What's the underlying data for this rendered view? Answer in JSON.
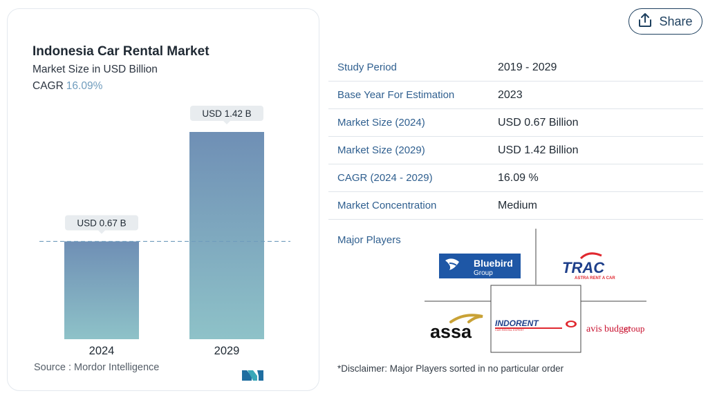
{
  "chart_data": {
    "type": "bar",
    "title": "Indonesia Car Rental Market",
    "subtitle": "Market Size in USD Billion",
    "cagr_label": "CAGR",
    "cagr_value": "16.09%",
    "categories": [
      "2024",
      "2029"
    ],
    "values": [
      0.67,
      1.42
    ],
    "data_labels": [
      "USD 0.67 B",
      "USD 1.42 B"
    ],
    "ylim": [
      0,
      1.42
    ],
    "reference_line_value": 0.67,
    "grid": false,
    "legend": "none",
    "colors": {
      "bar_top": "#6f8fb5",
      "bar_bottom": "#8ec2c8",
      "label_bg": "#e8ecef",
      "ref_line": "#6f9cbd"
    }
  },
  "source": "Source :  Mordor Intelligence",
  "share": {
    "label": "Share",
    "icon": "share-icon"
  },
  "info_rows": [
    {
      "label": "Study Period",
      "value": "2019 - 2029"
    },
    {
      "label": "Base Year For Estimation",
      "value": "2023"
    },
    {
      "label": "Market Size (2024)",
      "value": "USD 0.67 Billion"
    },
    {
      "label": "Market Size (2029)",
      "value": "USD 1.42 Billion"
    },
    {
      "label": "CAGR (2024 - 2029)",
      "value": "16.09 %"
    },
    {
      "label": "Market Concentration",
      "value": "Medium"
    }
  ],
  "major_players_label": "Major Players",
  "players": {
    "bluebird": [
      "Bluebird",
      "Group"
    ],
    "trac": [
      "TRAC",
      "ASTRA RENT A CAR"
    ],
    "assa": "assa",
    "indorent": [
      "INDORENT",
      "CAR RENTAL EXPERT"
    ],
    "avis": [
      "avis budget",
      "group"
    ]
  },
  "disclaimer": "*Disclaimer: Major Players sorted in no particular order",
  "colors": {
    "accent": "#2f5f8f",
    "divider": "#dfe4ea"
  }
}
